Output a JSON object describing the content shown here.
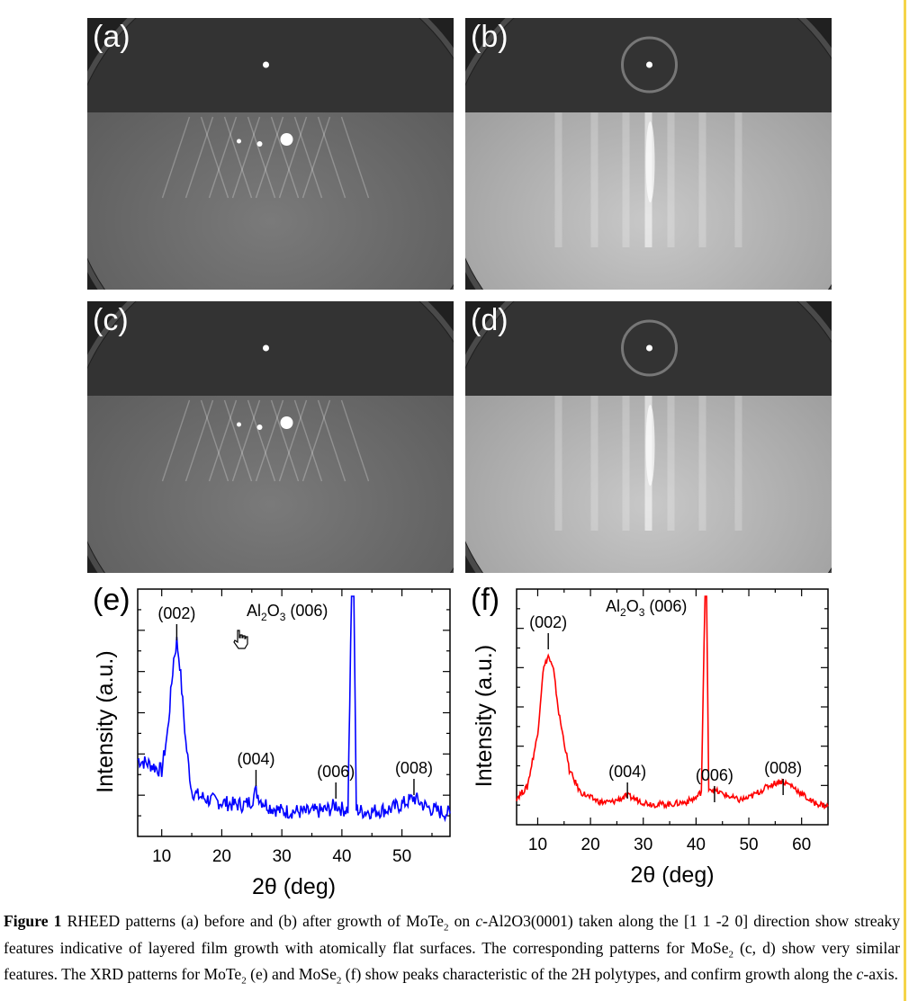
{
  "rheed_panels": [
    {
      "label": "(a)",
      "pattern": "spotty"
    },
    {
      "label": "(b)",
      "pattern": "streaky"
    },
    {
      "label": "(c)",
      "pattern": "spotty"
    },
    {
      "label": "(d)",
      "pattern": "streaky"
    }
  ],
  "chart_data": [
    {
      "type": "line",
      "panel_label": "(e)",
      "xlabel": "2θ (deg)",
      "ylabel": "Intensity (a.u.)",
      "xlim": [
        6,
        58
      ],
      "xticks": [
        10,
        20,
        30,
        40,
        50
      ],
      "color": "#0000ff",
      "series": [
        {
          "x": [
            6,
            8,
            10,
            11,
            12,
            12.5,
            13,
            14,
            15,
            16,
            18,
            20,
            22,
            24,
            25,
            25.7,
            26.5,
            28,
            30,
            32,
            34,
            36,
            38,
            39,
            40,
            41,
            41.6,
            42,
            42.4,
            43,
            45,
            48,
            50,
            52,
            54,
            56,
            58
          ],
          "y": [
            0.27,
            0.25,
            0.22,
            0.4,
            0.72,
            0.8,
            0.7,
            0.35,
            0.13,
            0.11,
            0.09,
            0.08,
            0.07,
            0.07,
            0.09,
            0.13,
            0.09,
            0.06,
            0.04,
            0.04,
            0.035,
            0.04,
            0.05,
            0.07,
            0.05,
            0.05,
            1.0,
            1.0,
            0.05,
            0.04,
            0.04,
            0.05,
            0.07,
            0.1,
            0.06,
            0.04,
            0.03
          ]
        }
      ],
      "annotations": [
        {
          "text": "(002)",
          "x": 12.5
        },
        {
          "text": "(004)",
          "x": 25.7
        },
        {
          "text": "(006)",
          "x": 39
        },
        {
          "text": "(008)",
          "x": 52
        }
      ],
      "substrate_label": {
        "main": "Al",
        "sub1": "2",
        "mid": "O",
        "sub2": "3",
        "tail": " (006)"
      }
    },
    {
      "type": "line",
      "panel_label": "(f)",
      "xlabel": "2θ (deg)",
      "ylabel": "Intensity (a.u.)",
      "xlim": [
        6,
        65
      ],
      "xticks": [
        10,
        20,
        30,
        40,
        50,
        60
      ],
      "color": "#ff0000",
      "series": [
        {
          "x": [
            6,
            8,
            10,
            11,
            12,
            13,
            14,
            16,
            18,
            20,
            22,
            24,
            26,
            27,
            28,
            30,
            32,
            35,
            38,
            40,
            41,
            41.7,
            42,
            42.4,
            43,
            44,
            46,
            48,
            50,
            52,
            54,
            56,
            58,
            60,
            62,
            65
          ],
          "y": [
            0.05,
            0.1,
            0.35,
            0.65,
            0.72,
            0.65,
            0.45,
            0.18,
            0.08,
            0.05,
            0.03,
            0.03,
            0.05,
            0.06,
            0.05,
            0.03,
            0.02,
            0.02,
            0.03,
            0.05,
            0.08,
            1.0,
            1.0,
            0.1,
            0.09,
            0.08,
            0.06,
            0.04,
            0.05,
            0.08,
            0.11,
            0.13,
            0.11,
            0.07,
            0.03,
            0.01
          ]
        }
      ],
      "annotations": [
        {
          "text": "(002)",
          "x": 12
        },
        {
          "text": "(004)",
          "x": 27
        },
        {
          "text": "(006)",
          "x": 43.5
        },
        {
          "text": "(008)",
          "x": 56.5
        }
      ],
      "substrate_label": {
        "main": "Al",
        "sub1": "2",
        "mid": "O",
        "sub2": "3",
        "tail": " (006)"
      }
    }
  ],
  "caption": {
    "bold": "Figure 1",
    "t1": " RHEED patterns (a) before and (b) after growth of MoTe",
    "s1": "2",
    "t2": " on ",
    "i1": "c",
    "t3": "-Al2O3(0001) taken along the [1 1 -2 0] direction show streaky features indicative of layered film growth with atomically flat surfaces. The corresponding patterns for MoSe",
    "s2": "2",
    "t4": " (c, d) show very similar features. The XRD patterns for MoTe",
    "s3": "2",
    "t5": " (e) and MoSe",
    "s4": "2",
    "t6": " (f) show peaks characteristic of the 2H polytypes, and confirm growth along the ",
    "i2": "c",
    "t7": "-axis."
  }
}
